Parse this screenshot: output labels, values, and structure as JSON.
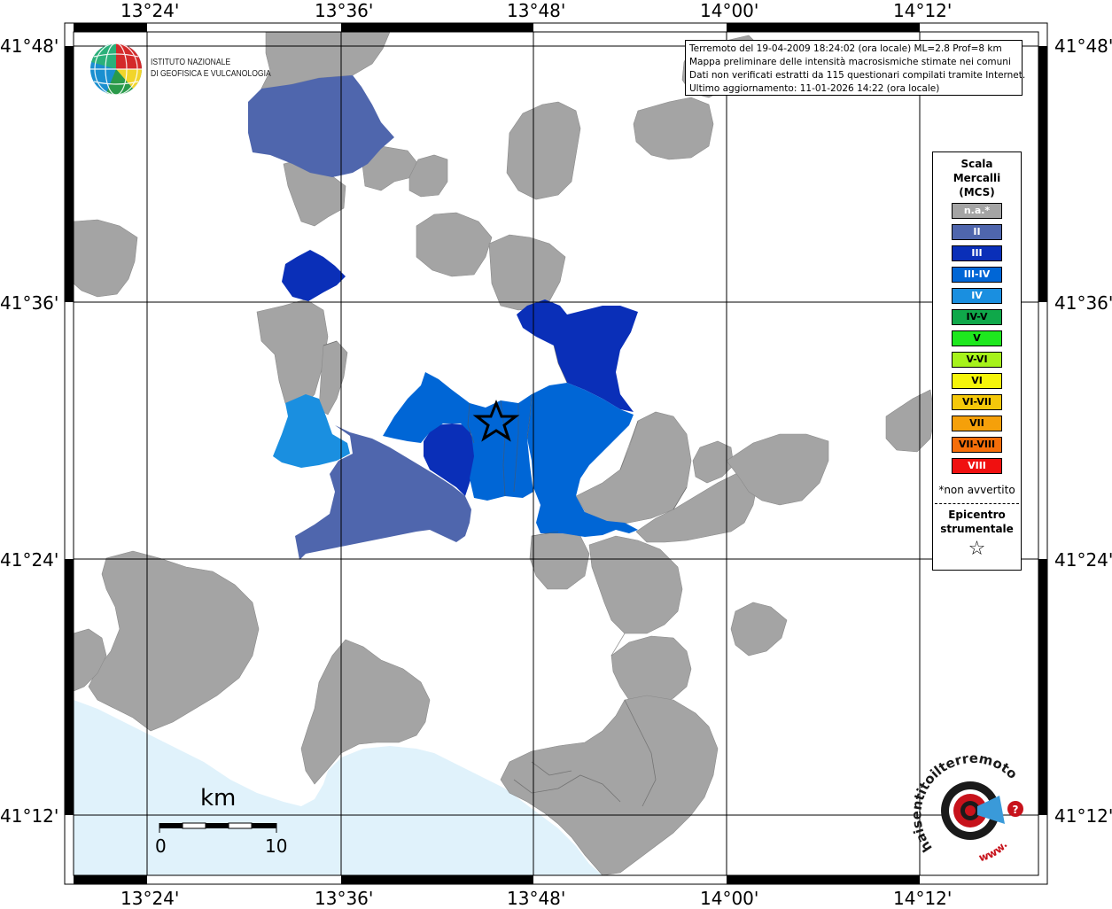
{
  "colors": {
    "sea": "#e0f2fb",
    "land_na": "#a4a4a4",
    "mcs_II": "#4f66ad",
    "mcs_III": "#0a2fb8",
    "mcs_III_IV": "#0066d6",
    "mcs_IV": "#1a8fe0"
  },
  "coords": {
    "lon_labels": [
      "13°24'",
      "13°36'",
      "13°48'",
      "14°00'",
      "14°12'"
    ],
    "lat_labels": [
      "41°48'",
      "41°36'",
      "41°24'",
      "41°12'"
    ]
  },
  "logo": {
    "line1": "ISTITUTO NAZIONALE",
    "line2": "DI GEOFISICA E VULCANOLOGIA"
  },
  "info": {
    "line1": "Terremoto del 19-04-2009 18:24:02 (ora locale) ML=2.8 Prof=8 km",
    "line2": "Mappa preliminare delle intensità macrosismiche stimate nei comuni",
    "line3": "Dati non verificati estratti da 115 questionari compilati tramite Internet.",
    "line4": "Ultimo aggiornamento: 11-01-2026 14:22 (ora locale)"
  },
  "legend": {
    "title_1": "Scala",
    "title_2": "Mercalli",
    "title_3": "(MCS)",
    "items": [
      {
        "label": "n.a.*",
        "color": "#a4a4a4",
        "text_color": "#ffffff"
      },
      {
        "label": "II",
        "color": "#4f66ad",
        "text_color": "#ffffff"
      },
      {
        "label": "III",
        "color": "#0a2fb8",
        "text_color": "#ffffff"
      },
      {
        "label": "III-IV",
        "color": "#0066d6",
        "text_color": "#ffffff"
      },
      {
        "label": "IV",
        "color": "#1a8fe0",
        "text_color": "#ffffff"
      },
      {
        "label": "IV-V",
        "color": "#0fa84a",
        "text_color": "#000000"
      },
      {
        "label": "V",
        "color": "#1ee81e",
        "text_color": "#000000"
      },
      {
        "label": "V-VI",
        "color": "#a6f21b",
        "text_color": "#000000"
      },
      {
        "label": "VI",
        "color": "#f5f50a",
        "text_color": "#000000"
      },
      {
        "label": "VI-VII",
        "color": "#f5c80a",
        "text_color": "#000000"
      },
      {
        "label": "VII",
        "color": "#f5a00a",
        "text_color": "#000000"
      },
      {
        "label": "VII-VIII",
        "color": "#f56e0a",
        "text_color": "#000000"
      },
      {
        "label": "VIII",
        "color": "#f01010",
        "text_color": "#ffffff"
      }
    ],
    "note": "*non avvertito",
    "epicenter_1": "Epicentro",
    "epicenter_2": "strumentale",
    "star": "☆"
  },
  "scale_bar": {
    "unit": "km",
    "min": "0",
    "max": "10"
  },
  "brand": {
    "name": "haisentitoilterremoto.it",
    "www": "www."
  }
}
